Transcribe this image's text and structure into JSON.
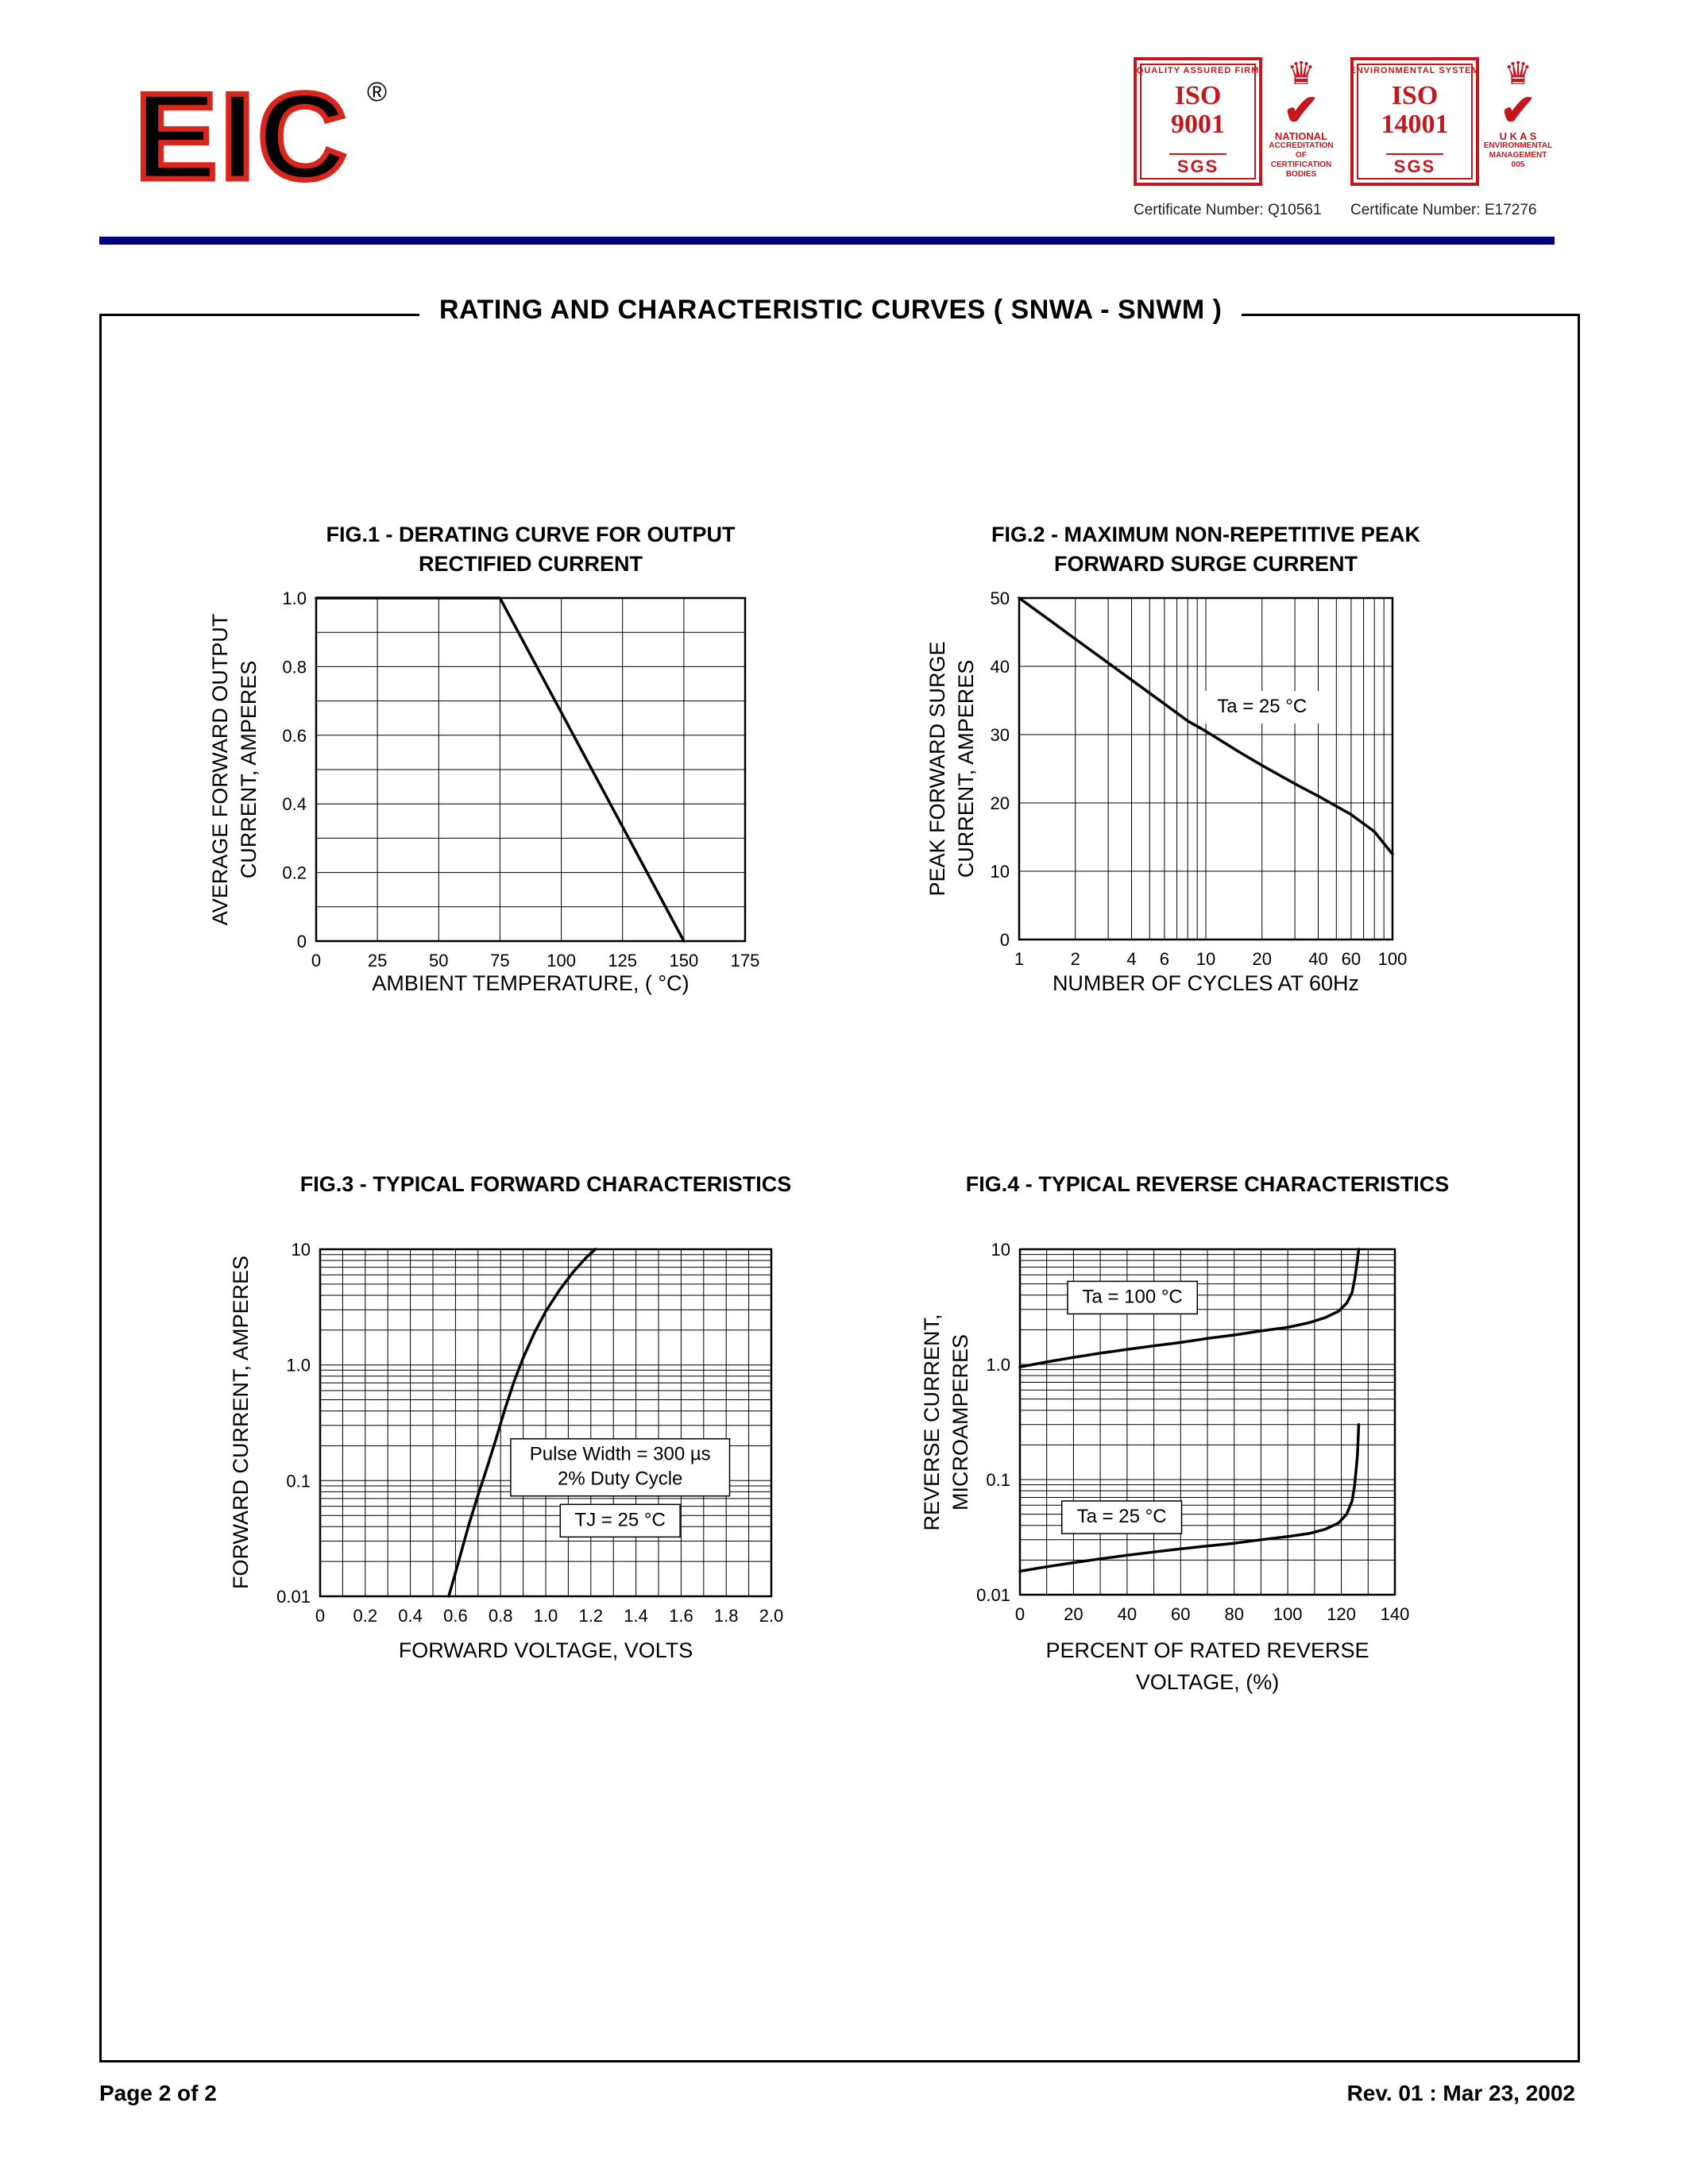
{
  "page": {
    "title": "RATING AND CHARACTERISTIC CURVES  ( SNWA - SNWM )",
    "footer_left": "Page 2 of 2",
    "footer_right": "Rev. 01 : Mar 23, 2002"
  },
  "colors": {
    "accent_red": "#c4161c",
    "rule_navy": "#000080"
  },
  "header": {
    "logo_text": "EIC",
    "registered_mark": "®",
    "badges": [
      {
        "arc_text": "QUALITY ASSURED FIRM",
        "iso_line1": "ISO",
        "iso_line2": "9001",
        "org": "SGS",
        "emblem_lines": [
          "NATIONAL",
          "ACCREDITATION OF",
          "CERTIFICATION",
          "BODIES"
        ],
        "certificate": "Certificate Number: Q10561"
      },
      {
        "arc_text": "ENVIRONMENTAL SYSTEM",
        "iso_line1": "ISO",
        "iso_line2": "14001",
        "org": "SGS",
        "emblem_lines": [
          "U K A S",
          "ENVIRONMENTAL",
          "MANAGEMENT",
          "005"
        ],
        "certificate": "Certificate Number: E17276"
      }
    ]
  },
  "chart_data": [
    {
      "id": "fig1",
      "type": "line",
      "title_lines": [
        "FIG.1 - DERATING CURVE FOR OUTPUT",
        "RECTIFIED CURRENT"
      ],
      "ylabel_lines": [
        "AVERAGE FORWARD OUTPUT",
        "CURRENT, AMPERES"
      ],
      "xlabel_lines": [
        "AMBIENT TEMPERATURE, ( °C)"
      ],
      "x_scale": "linear",
      "y_scale": "linear",
      "xlim": [
        0,
        175
      ],
      "ylim": [
        0,
        1.0
      ],
      "grid": true,
      "legend": "none",
      "x_gridlines": [
        0,
        25,
        50,
        75,
        100,
        125,
        150,
        175
      ],
      "y_gridlines": [
        0,
        0.1,
        0.2,
        0.3,
        0.4,
        0.5,
        0.6,
        0.7,
        0.8,
        0.9,
        1.0
      ],
      "x_ticks": {
        "values": [
          0,
          25,
          50,
          75,
          100,
          125,
          150,
          175
        ],
        "labels": [
          "0",
          "25",
          "50",
          "75",
          "100",
          "125",
          "150",
          "175"
        ]
      },
      "y_ticks": {
        "values": [
          0,
          0.2,
          0.4,
          0.6,
          0.8,
          1.0
        ],
        "labels": [
          "0",
          "0.2",
          "0.4",
          "0.6",
          "0.8",
          "1.0"
        ]
      },
      "series": [
        {
          "name": "derating-curve",
          "points": [
            [
              0,
              1.0
            ],
            [
              75,
              1.0
            ],
            [
              150,
              0
            ]
          ]
        }
      ],
      "annotations": []
    },
    {
      "id": "fig2",
      "type": "line",
      "title_lines": [
        "FIG.2 - MAXIMUM NON-REPETITIVE PEAK",
        "FORWARD SURGE CURRENT"
      ],
      "ylabel_lines": [
        "PEAK FORWARD SURGE",
        "CURRENT, AMPERES"
      ],
      "xlabel_lines": [
        "NUMBER OF CYCLES AT 60Hz"
      ],
      "x_scale": "log",
      "y_scale": "linear",
      "xlim": [
        1,
        100
      ],
      "ylim": [
        0,
        50
      ],
      "grid": true,
      "legend": "none",
      "x_gridlines": [
        1,
        2,
        3,
        4,
        5,
        6,
        7,
        8,
        9,
        10,
        20,
        30,
        40,
        50,
        60,
        70,
        80,
        90,
        100
      ],
      "y_gridlines": [
        0,
        10,
        20,
        30,
        40,
        50
      ],
      "x_ticks": {
        "values": [
          1,
          2,
          4,
          6,
          10,
          20,
          40,
          60,
          100
        ],
        "labels": [
          "1",
          "2",
          "4",
          "6",
          "10",
          "20",
          "40",
          "60",
          "100"
        ]
      },
      "y_ticks": {
        "values": [
          0,
          10,
          20,
          30,
          40,
          50
        ],
        "labels": [
          "0",
          "10",
          "20",
          "30",
          "40",
          "50"
        ]
      },
      "series": [
        {
          "name": "surge-current",
          "points": [
            [
              1,
              50
            ],
            [
              1.5,
              46.5
            ],
            [
              2,
              44
            ],
            [
              3,
              40.5
            ],
            [
              4,
              38
            ],
            [
              6,
              34.5
            ],
            [
              8,
              32
            ],
            [
              10,
              30.5
            ],
            [
              15,
              27.5
            ],
            [
              20,
              25.5
            ],
            [
              30,
              22.8
            ],
            [
              40,
              21
            ],
            [
              60,
              18.3
            ],
            [
              80,
              15.8
            ],
            [
              100,
              12.5
            ]
          ]
        }
      ],
      "annotations": [
        {
          "lines": [
            "Ta = 25 °C"
          ],
          "x": 20,
          "y": 34,
          "boxed": false
        }
      ]
    },
    {
      "id": "fig3",
      "type": "line",
      "title_lines": [
        "FIG.3 - TYPICAL FORWARD CHARACTERISTICS"
      ],
      "ylabel_lines": [
        "FORWARD CURRENT, AMPERES"
      ],
      "xlabel_lines": [
        "FORWARD VOLTAGE, VOLTS"
      ],
      "x_scale": "linear",
      "y_scale": "log",
      "xlim": [
        0,
        2.0
      ],
      "ylim": [
        0.01,
        10
      ],
      "grid": true,
      "legend": "none",
      "x_gridlines": [
        0,
        0.1,
        0.2,
        0.3,
        0.4,
        0.5,
        0.6,
        0.7,
        0.8,
        0.9,
        1.0,
        1.1,
        1.2,
        1.3,
        1.4,
        1.5,
        1.6,
        1.7,
        1.8,
        1.9,
        2.0
      ],
      "y_gridlines": [
        0.01,
        0.02,
        0.03,
        0.04,
        0.05,
        0.06,
        0.07,
        0.08,
        0.09,
        0.1,
        0.2,
        0.3,
        0.4,
        0.5,
        0.6,
        0.7,
        0.8,
        0.9,
        1,
        2,
        3,
        4,
        5,
        6,
        7,
        8,
        9,
        10
      ],
      "x_ticks": {
        "values": [
          0,
          0.2,
          0.4,
          0.6,
          0.8,
          1.0,
          1.2,
          1.4,
          1.6,
          1.8,
          2.0
        ],
        "labels": [
          "0",
          "0.2",
          "0.4",
          "0.6",
          "0.8",
          "1.0",
          "1.2",
          "1.4",
          "1.6",
          "1.8",
          "2.0"
        ]
      },
      "y_ticks": {
        "values": [
          0.01,
          0.1,
          1,
          10
        ],
        "labels": [
          "0.01",
          "0.1",
          "1.0",
          "10"
        ]
      },
      "series": [
        {
          "name": "forward-characteristic",
          "points": [
            [
              0.57,
              0.01
            ],
            [
              0.6,
              0.016
            ],
            [
              0.63,
              0.026
            ],
            [
              0.66,
              0.042
            ],
            [
              0.7,
              0.075
            ],
            [
              0.74,
              0.13
            ],
            [
              0.78,
              0.23
            ],
            [
              0.82,
              0.42
            ],
            [
              0.86,
              0.72
            ],
            [
              0.9,
              1.15
            ],
            [
              0.95,
              1.9
            ],
            [
              1.0,
              2.9
            ],
            [
              1.06,
              4.4
            ],
            [
              1.12,
              6.3
            ],
            [
              1.18,
              8.5
            ],
            [
              1.22,
              10
            ]
          ]
        }
      ],
      "annotations": [
        {
          "lines": [
            "Pulse Width = 300 µs",
            "2% Duty Cycle"
          ],
          "x": 1.33,
          "y": 0.13,
          "boxed": true
        },
        {
          "lines": [
            "TJ = 25 °C"
          ],
          "x": 1.33,
          "y": 0.045,
          "boxed": true
        }
      ]
    },
    {
      "id": "fig4",
      "type": "line",
      "title_lines": [
        "FIG.4 - TYPICAL REVERSE CHARACTERISTICS"
      ],
      "ylabel_lines": [
        "REVERSE CURRENT,",
        "MICROAMPERES"
      ],
      "xlabel_lines": [
        "PERCENT OF RATED REVERSE",
        "VOLTAGE, (%)"
      ],
      "x_scale": "linear",
      "y_scale": "log",
      "xlim": [
        0,
        140
      ],
      "ylim": [
        0.01,
        10
      ],
      "grid": true,
      "legend": "none",
      "x_gridlines": [
        0,
        10,
        20,
        30,
        40,
        50,
        60,
        70,
        80,
        90,
        100,
        110,
        120,
        130,
        140
      ],
      "y_gridlines": [
        0.01,
        0.02,
        0.03,
        0.04,
        0.05,
        0.06,
        0.07,
        0.08,
        0.09,
        0.1,
        0.2,
        0.3,
        0.4,
        0.5,
        0.6,
        0.7,
        0.8,
        0.9,
        1,
        2,
        3,
        4,
        5,
        6,
        7,
        8,
        9,
        10
      ],
      "x_ticks": {
        "values": [
          0,
          20,
          40,
          60,
          80,
          100,
          120,
          140
        ],
        "labels": [
          "0",
          "20",
          "40",
          "60",
          "80",
          "100",
          "120",
          "140"
        ]
      },
      "y_ticks": {
        "values": [
          0.01,
          0.1,
          1,
          10
        ],
        "labels": [
          "0.01",
          "0.1",
          "1.0",
          "10"
        ]
      },
      "series": [
        {
          "name": "Ta = 100 °C",
          "points": [
            [
              0,
              0.95
            ],
            [
              10,
              1.05
            ],
            [
              20,
              1.15
            ],
            [
              30,
              1.25
            ],
            [
              40,
              1.35
            ],
            [
              50,
              1.45
            ],
            [
              60,
              1.55
            ],
            [
              70,
              1.68
            ],
            [
              80,
              1.8
            ],
            [
              90,
              1.95
            ],
            [
              100,
              2.1
            ],
            [
              108,
              2.3
            ],
            [
              114,
              2.55
            ],
            [
              119,
              2.9
            ],
            [
              122,
              3.4
            ],
            [
              124,
              4.2
            ],
            [
              125,
              5.5
            ],
            [
              126,
              8
            ],
            [
              126.5,
              10
            ]
          ]
        },
        {
          "name": "Ta = 25 °C",
          "points": [
            [
              0,
              0.016
            ],
            [
              10,
              0.0175
            ],
            [
              20,
              0.019
            ],
            [
              30,
              0.0205
            ],
            [
              40,
              0.022
            ],
            [
              50,
              0.0235
            ],
            [
              60,
              0.025
            ],
            [
              70,
              0.0265
            ],
            [
              80,
              0.028
            ],
            [
              90,
              0.03
            ],
            [
              100,
              0.032
            ],
            [
              108,
              0.034
            ],
            [
              114,
              0.037
            ],
            [
              119,
              0.042
            ],
            [
              122,
              0.05
            ],
            [
              124,
              0.065
            ],
            [
              125,
              0.09
            ],
            [
              126,
              0.16
            ],
            [
              126.5,
              0.3
            ]
          ]
        }
      ],
      "annotations": [
        {
          "lines": [
            "Ta = 100 °C"
          ],
          "x": 42,
          "y": 3.8,
          "boxed": true
        },
        {
          "lines": [
            "Ta = 25 °C"
          ],
          "x": 38,
          "y": 0.047,
          "boxed": true
        }
      ]
    }
  ]
}
